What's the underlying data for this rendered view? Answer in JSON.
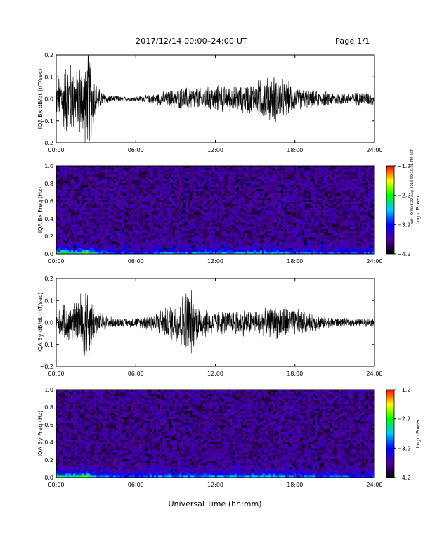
{
  "header": {
    "title": "2017/12/14  00:00–24:00 UT",
    "page": "Page 1/1"
  },
  "xlabel": "Universal Time (hh:mm)",
  "side_stamp": "sdr—0 Wed 22 Aug 2018 09:10:21 PM EST",
  "colors": {
    "trace": "#000000",
    "background": "#ffffff",
    "colormap": [
      "#000000",
      "#5000a0",
      "#0000ff",
      "#00c8ff",
      "#00ff00",
      "#ffff00",
      "#ff0000"
    ]
  },
  "chart_data": [
    {
      "type": "line",
      "ylabel": "IQA Bx dB/dt (nT/sec)",
      "xlim": [
        0,
        24
      ],
      "ylim": [
        -0.2,
        0.2
      ],
      "xticks": [
        "00:00",
        "06:00",
        "12:00",
        "18:00",
        "24:00"
      ],
      "yticks": [
        "−0.2",
        "−0.1",
        "0.0",
        "0.1",
        "0.2"
      ],
      "envelope": {
        "hour": [
          0,
          0.5,
          1,
          1.5,
          2,
          2.5,
          3,
          3.5,
          4,
          5,
          6,
          7,
          8,
          9,
          10,
          11,
          12,
          13,
          14,
          15,
          16,
          16.5,
          17,
          17.5,
          18,
          19,
          20,
          21,
          22,
          23,
          24
        ],
        "amplitude": [
          0.09,
          0.16,
          0.2,
          0.14,
          0.22,
          0.24,
          0.08,
          0.035,
          0.02,
          0.01,
          0.012,
          0.02,
          0.035,
          0.05,
          0.06,
          0.055,
          0.07,
          0.065,
          0.07,
          0.09,
          0.11,
          0.12,
          0.1,
          0.09,
          0.06,
          0.045,
          0.04,
          0.035,
          0.03,
          0.035,
          0.035
        ]
      }
    },
    {
      "type": "heatmap",
      "ylabel": "IQA Bx Freq (Hz)",
      "xlim": [
        0,
        24
      ],
      "ylim": [
        0,
        1.0
      ],
      "xticks": [
        "00:00",
        "06:00",
        "12:00",
        "18:00",
        "24:00"
      ],
      "yticks": [
        "0.0",
        "0.2",
        "0.4",
        "0.6",
        "0.8",
        "1.0"
      ],
      "colorbar": {
        "label": "Log₁₀ Power",
        "range": [
          -4.2,
          -1.2
        ],
        "ticks": [
          "−1.2",
          "−2.2",
          "−3.2",
          "−4.2"
        ]
      },
      "low_freq_power": {
        "hour": [
          0,
          1,
          2,
          2.3,
          3,
          4,
          6,
          8,
          10,
          12,
          14,
          16,
          18,
          20,
          22,
          24
        ],
        "value": [
          -1.8,
          -2.0,
          -1.9,
          -1.6,
          -2.4,
          -2.8,
          -3.0,
          -2.7,
          -2.6,
          -2.5,
          -2.5,
          -2.4,
          -2.7,
          -2.8,
          -2.9,
          -2.9
        ]
      }
    },
    {
      "type": "line",
      "ylabel": "IQA By dB/dt (nT/sec)",
      "xlim": [
        0,
        24
      ],
      "ylim": [
        -0.2,
        0.2
      ],
      "xticks": [
        "00:00",
        "06:00",
        "12:00",
        "18:00",
        "24:00"
      ],
      "yticks": [
        "−0.2",
        "−0.1",
        "0.0",
        "0.1",
        "0.2"
      ],
      "envelope": {
        "hour": [
          0,
          0.5,
          1,
          1.5,
          2,
          2.3,
          2.7,
          3,
          4,
          5,
          6,
          7,
          8,
          9,
          9.5,
          10,
          10.5,
          11,
          12,
          13,
          14,
          15,
          16,
          17,
          18,
          19,
          20,
          21,
          22,
          23,
          24
        ],
        "amplitude": [
          0.05,
          0.08,
          0.12,
          0.1,
          0.18,
          0.22,
          0.12,
          0.06,
          0.03,
          0.02,
          0.025,
          0.04,
          0.07,
          0.1,
          0.14,
          0.19,
          0.12,
          0.08,
          0.06,
          0.06,
          0.07,
          0.06,
          0.07,
          0.09,
          0.07,
          0.05,
          0.035,
          0.025,
          0.02,
          0.02,
          0.02
        ]
      }
    },
    {
      "type": "heatmap",
      "ylabel": "IQA By Freq (Hz)",
      "xlim": [
        0,
        24
      ],
      "ylim": [
        0,
        1.0
      ],
      "xticks": [
        "00:00",
        "06:00",
        "12:00",
        "18:00",
        "24:00"
      ],
      "yticks": [
        "0.0",
        "0.2",
        "0.4",
        "0.6",
        "0.8",
        "1.0"
      ],
      "colorbar": {
        "label": "Log₁₀ Power",
        "range": [
          -4.2,
          -1.2
        ],
        "ticks": [
          "−1.2",
          "−2.2",
          "−3.2",
          "−4.2"
        ]
      },
      "low_freq_power": {
        "hour": [
          0,
          1,
          2,
          2.3,
          3,
          4,
          6,
          8,
          10,
          12,
          14,
          16,
          18,
          20,
          22,
          24
        ],
        "value": [
          -2.0,
          -2.1,
          -1.9,
          -1.7,
          -2.5,
          -2.8,
          -3.0,
          -2.6,
          -2.5,
          -2.5,
          -2.5,
          -2.4,
          -2.7,
          -2.8,
          -2.9,
          -2.9
        ]
      }
    }
  ]
}
